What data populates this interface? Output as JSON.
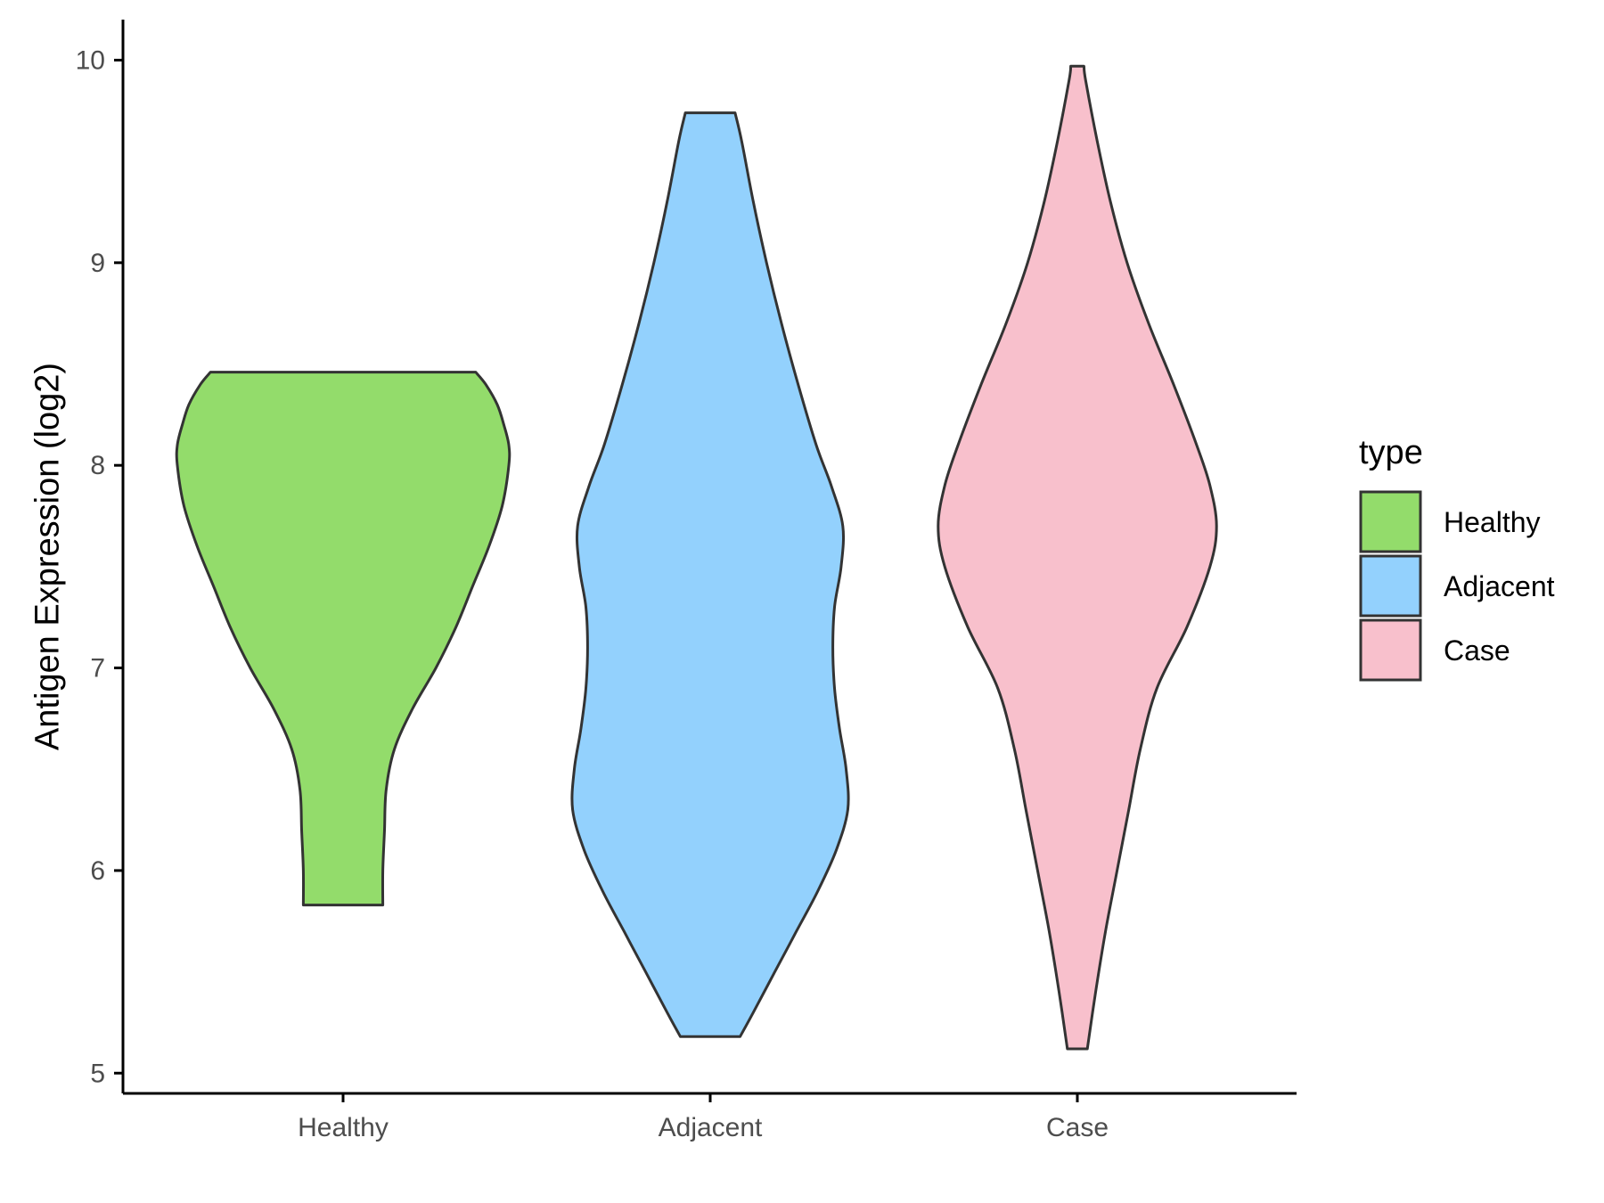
{
  "chart_data": {
    "type": "violin",
    "title": "",
    "xlabel": "",
    "ylabel": "Antigen Expression (log2)",
    "ylim": [
      4.9,
      10.2
    ],
    "yticks": [
      5,
      6,
      7,
      8,
      9,
      10
    ],
    "categories": [
      "Healthy",
      "Adjacent",
      "Case"
    ],
    "grid": false,
    "legend": {
      "title": "type",
      "placement": "right",
      "entries": [
        "Healthy",
        "Adjacent",
        "Case"
      ]
    },
    "series": [
      {
        "category": "Healthy",
        "color": "#93dc6b",
        "min": 5.83,
        "max": 8.46,
        "density_profile": [
          [
            5.83,
            0.24
          ],
          [
            6.0,
            0.24
          ],
          [
            6.2,
            0.25
          ],
          [
            6.4,
            0.26
          ],
          [
            6.6,
            0.31
          ],
          [
            6.8,
            0.42
          ],
          [
            7.0,
            0.56
          ],
          [
            7.2,
            0.68
          ],
          [
            7.4,
            0.78
          ],
          [
            7.6,
            0.88
          ],
          [
            7.8,
            0.96
          ],
          [
            8.0,
            1.0
          ],
          [
            8.1,
            1.0
          ],
          [
            8.2,
            0.97
          ],
          [
            8.3,
            0.93
          ],
          [
            8.4,
            0.86
          ],
          [
            8.46,
            0.8
          ]
        ]
      },
      {
        "category": "Adjacent",
        "color": "#93d1fd",
        "min": 5.18,
        "max": 9.74,
        "density_profile": [
          [
            5.18,
            0.18
          ],
          [
            5.3,
            0.26
          ],
          [
            5.5,
            0.39
          ],
          [
            5.7,
            0.52
          ],
          [
            5.9,
            0.65
          ],
          [
            6.1,
            0.76
          ],
          [
            6.3,
            0.83
          ],
          [
            6.5,
            0.82
          ],
          [
            6.7,
            0.78
          ],
          [
            6.9,
            0.75
          ],
          [
            7.1,
            0.74
          ],
          [
            7.3,
            0.75
          ],
          [
            7.5,
            0.79
          ],
          [
            7.7,
            0.8
          ],
          [
            7.9,
            0.73
          ],
          [
            8.1,
            0.64
          ],
          [
            8.4,
            0.53
          ],
          [
            8.7,
            0.43
          ],
          [
            9.0,
            0.34
          ],
          [
            9.3,
            0.26
          ],
          [
            9.6,
            0.19
          ],
          [
            9.74,
            0.15
          ]
        ]
      },
      {
        "category": "Case",
        "color": "#f8c0cc",
        "min": 5.12,
        "max": 9.97,
        "density_profile": [
          [
            5.12,
            0.06
          ],
          [
            5.4,
            0.11
          ],
          [
            5.7,
            0.17
          ],
          [
            6.0,
            0.24
          ],
          [
            6.3,
            0.31
          ],
          [
            6.6,
            0.38
          ],
          [
            6.9,
            0.48
          ],
          [
            7.2,
            0.66
          ],
          [
            7.5,
            0.8
          ],
          [
            7.7,
            0.84
          ],
          [
            7.9,
            0.8
          ],
          [
            8.1,
            0.72
          ],
          [
            8.4,
            0.58
          ],
          [
            8.7,
            0.43
          ],
          [
            9.0,
            0.3
          ],
          [
            9.3,
            0.2
          ],
          [
            9.6,
            0.12
          ],
          [
            9.9,
            0.05
          ],
          [
            9.97,
            0.04
          ]
        ]
      }
    ]
  }
}
